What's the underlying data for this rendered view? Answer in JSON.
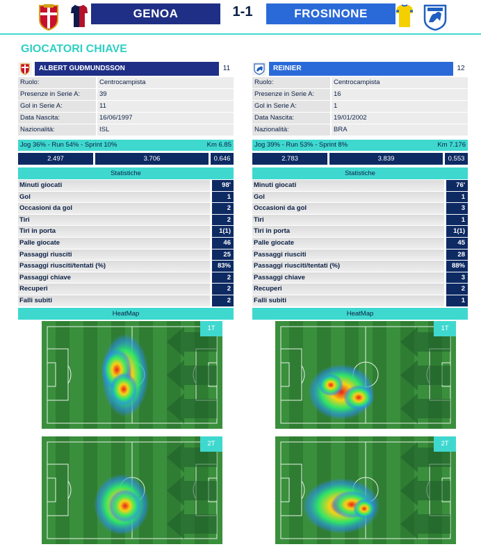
{
  "match": {
    "home_team": "GENOA",
    "away_team": "FROSINONE",
    "score": "1-1"
  },
  "section_title": "GIOCATORI CHIAVE",
  "players": [
    {
      "name": "ALBERT GUÐMUNDSSON",
      "number": "11",
      "info": [
        {
          "label": "Ruolo:",
          "value": "Centrocampista"
        },
        {
          "label": "Presenze in Serie A:",
          "value": "39"
        },
        {
          "label": "Gol in Serie A:",
          "value": "11"
        },
        {
          "label": "Data Nascita:",
          "value": "16/06/1997"
        },
        {
          "label": "Nazionalità:",
          "value": "ISL"
        }
      ],
      "run_text": "Jog 36% - Run 54% - Sprint 10%",
      "km": "Km 6.85",
      "run_values": [
        "2.497",
        "3.706",
        "0.646"
      ],
      "stats_title": "Statistiche",
      "stats": [
        {
          "label": "Minuti giocati",
          "value": "98'"
        },
        {
          "label": "Gol",
          "value": "1"
        },
        {
          "label": "Occasioni da gol",
          "value": "2"
        },
        {
          "label": "Tiri",
          "value": "2"
        },
        {
          "label": "Tiri in porta",
          "value": "1(1)"
        },
        {
          "label": "Palle giocate",
          "value": "46"
        },
        {
          "label": "Passaggi riusciti",
          "value": "25"
        },
        {
          "label": "Passaggi riusciti/tentati (%)",
          "value": "83%"
        },
        {
          "label": "Passaggi chiave",
          "value": "2"
        },
        {
          "label": "Recuperi",
          "value": "2"
        },
        {
          "label": "Falli subiti",
          "value": "2"
        }
      ],
      "heatmap_title": "HeatMap",
      "heatmaps": [
        "1T",
        "2T"
      ]
    },
    {
      "name": "REINIER",
      "number": "12",
      "info": [
        {
          "label": "Ruolo:",
          "value": "Centrocampista"
        },
        {
          "label": "Presenze in Serie A:",
          "value": "16"
        },
        {
          "label": "Gol in Serie A:",
          "value": "1"
        },
        {
          "label": "Data Nascita:",
          "value": "19/01/2002"
        },
        {
          "label": "Nazionalità:",
          "value": "BRA"
        }
      ],
      "run_text": "Jog 39% - Run 53% - Sprint 8%",
      "km": "Km 7.176",
      "run_values": [
        "2.783",
        "3.839",
        "0.553"
      ],
      "stats_title": "Statistiche",
      "stats": [
        {
          "label": "Minuti giocati",
          "value": "76'"
        },
        {
          "label": "Gol",
          "value": "1"
        },
        {
          "label": "Occasioni da gol",
          "value": "3"
        },
        {
          "label": "Tiri",
          "value": "1"
        },
        {
          "label": "Tiri in porta",
          "value": "1(1)"
        },
        {
          "label": "Palle giocate",
          "value": "45"
        },
        {
          "label": "Passaggi riusciti",
          "value": "28"
        },
        {
          "label": "Passaggi riusciti/tentati (%)",
          "value": "88%"
        },
        {
          "label": "Passaggi chiave",
          "value": "3"
        },
        {
          "label": "Recuperi",
          "value": "2"
        },
        {
          "label": "Falli subiti",
          "value": "1"
        }
      ],
      "heatmap_title": "HeatMap",
      "heatmaps": [
        "1T",
        "2T"
      ]
    }
  ],
  "colors": {
    "accent": "#3fd8cf",
    "home": "#1f2f86",
    "away": "#2a6ad8",
    "value_bg": "#0d2a63"
  },
  "icons": {
    "home_crest": "genoa-crest-icon",
    "home_kit": "genoa-kit-icon",
    "away_kit": "frosinone-kit-icon",
    "away_crest": "frosinone-crest-icon"
  }
}
